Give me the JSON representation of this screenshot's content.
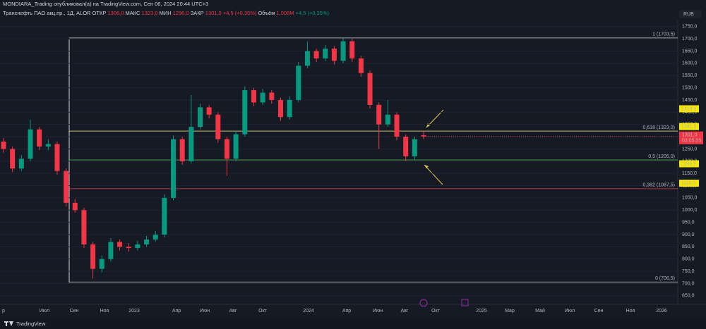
{
  "header": {
    "author_line": "MONDIARA_Trading опубликовал(а) на TradingView.com, Сен 06, 2024 20:44 UTC+3",
    "symbol": "Транснефть ПАО акц.пр., 1Д, ALOR",
    "ohlc": [
      {
        "name": "ОТКР",
        "value": "1306,0"
      },
      {
        "name": "МАКС",
        "value": "1323,0"
      },
      {
        "name": "МИН",
        "value": "1290,0"
      },
      {
        "name": "ЗАКР",
        "value": "1301,0"
      },
      {
        "name": "",
        "value": "+4,5 (+0,35%)"
      }
    ],
    "volume_name": "Объём",
    "volume": "1,006M",
    "volume_change": "+4,5 (+0,35%)",
    "currency": "RUB",
    "brand": "TradingView"
  },
  "chart_data": {
    "type": "candlestick",
    "up_color": "#089981",
    "down_color": "#f23645",
    "open": [
      1280,
      1250,
      1170,
      1210,
      1330,
      1260,
      1270,
      1160,
      1030,
      1000,
      860,
      760,
      800,
      870,
      850,
      845,
      860,
      880,
      900,
      1050,
      1290,
      1200,
      1340,
      1420,
      1390,
      1290,
      1210,
      1310,
      1490,
      1440,
      1480,
      1450,
      1380,
      1450,
      1590,
      1650,
      1620,
      1660,
      1610,
      1690,
      1620,
      1560,
      1430,
      1350,
      1390,
      1300,
      1220,
      1306
    ],
    "high": [
      1295,
      1260,
      1225,
      1370,
      1340,
      1290,
      1280,
      1170,
      1045,
      1010,
      870,
      815,
      885,
      880,
      865,
      875,
      895,
      915,
      1065,
      1305,
      1300,
      1470,
      1435,
      1430,
      1400,
      1300,
      1325,
      1505,
      1500,
      1495,
      1490,
      1460,
      1465,
      1605,
      1690,
      1660,
      1675,
      1670,
      1703.5,
      1700,
      1630,
      1570,
      1440,
      1450,
      1400,
      1310,
      1300,
      1323
    ],
    "low": [
      1235,
      1155,
      1160,
      1200,
      1245,
      1245,
      1145,
      1015,
      990,
      845,
      720,
      745,
      790,
      835,
      830,
      835,
      850,
      870,
      890,
      1040,
      1185,
      1190,
      1330,
      1375,
      1275,
      1140,
      1200,
      1300,
      1425,
      1430,
      1435,
      1365,
      1370,
      1440,
      1580,
      1605,
      1610,
      1595,
      1600,
      1605,
      1545,
      1415,
      1250,
      1340,
      1285,
      1200,
      1205,
      1290
    ],
    "close": [
      1250,
      1170,
      1210,
      1330,
      1260,
      1270,
      1160,
      1030,
      1000,
      860,
      760,
      800,
      870,
      850,
      845,
      860,
      880,
      900,
      1050,
      1290,
      1200,
      1340,
      1420,
      1390,
      1290,
      1210,
      1310,
      1490,
      1440,
      1480,
      1450,
      1380,
      1450,
      1590,
      1650,
      1620,
      1660,
      1610,
      1690,
      1620,
      1560,
      1430,
      1350,
      1390,
      1300,
      1220,
      1290,
      1301
    ],
    "ylim": [
      615,
      1778
    ],
    "yticks": [
      {
        "value": 650,
        "label": "650,0"
      },
      {
        "value": 700,
        "label": "700,0"
      },
      {
        "value": 750,
        "label": "750,0"
      },
      {
        "value": 800,
        "label": "800,0"
      },
      {
        "value": 850,
        "label": "850,0"
      },
      {
        "value": 900,
        "label": "900,0"
      },
      {
        "value": 950,
        "label": "950,0"
      },
      {
        "value": 1000,
        "label": "1000,0"
      },
      {
        "value": 1050,
        "label": "1050,0"
      },
      {
        "value": 1100,
        "label": "1100,0"
      },
      {
        "value": 1150,
        "label": "1150,0"
      },
      {
        "value": 1200,
        "label": "1200,0"
      },
      {
        "value": 1250,
        "label": "1250,0"
      },
      {
        "value": 1300,
        "label": "1300,0"
      },
      {
        "value": 1350,
        "label": "1350,0"
      },
      {
        "value": 1400,
        "label": "1400,0"
      },
      {
        "value": 1450,
        "label": "1450,0"
      },
      {
        "value": 1500,
        "label": "1500,0"
      },
      {
        "value": 1550,
        "label": "1550,0"
      },
      {
        "value": 1600,
        "label": "1600,0"
      },
      {
        "value": 1650,
        "label": "1650,0"
      },
      {
        "value": 1700,
        "label": "1700,0"
      },
      {
        "value": 1750,
        "label": "1750,0"
      }
    ],
    "xticks": [
      "р",
      "Июл",
      "Сен",
      "Ноя",
      "2023",
      "Апр",
      "Июн",
      "Авг",
      "Окт",
      "2024",
      "Апр",
      "Июн",
      "Авг",
      "Окт",
      "2025",
      "Мар",
      "Май",
      "Июл",
      "Сен",
      "Ноя",
      "2026"
    ],
    "fib_levels": [
      {
        "value": 1703.5,
        "label": "1 (1703,5)",
        "color": "#d1d4dc"
      },
      {
        "value": 1323,
        "label": "0,618 (1323,0)",
        "color": "#e0d56a"
      },
      {
        "value": 1205,
        "label": "0,5 (1205,0)",
        "color": "#4caf50"
      },
      {
        "value": 1087.5,
        "label": "0,382 (1087,5)",
        "color": "#f23645"
      },
      {
        "value": 706.5,
        "label": "0 (706,5)",
        "color": "#d1d4dc"
      }
    ],
    "price_marks": [
      {
        "value": 1414,
        "label": "1414,0"
      },
      {
        "value": 1341.5,
        "label": "1341,5"
      },
      {
        "value": 1189.5,
        "label": "1189,5"
      },
      {
        "value": 1110,
        "label": "1110,0"
      }
    ],
    "last_price": {
      "value": 1301,
      "label": "1301,0",
      "countdown": "03:05:25"
    }
  }
}
